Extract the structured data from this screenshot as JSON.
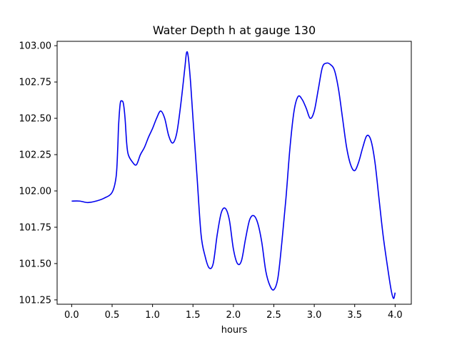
{
  "chart_data": {
    "type": "line",
    "title": "Water Depth h at gauge 130",
    "xlabel": "hours",
    "ylabel": "",
    "xlim": [
      -0.18,
      4.2
    ],
    "ylim": [
      101.22,
      103.03
    ],
    "xticks": [
      0.0,
      0.5,
      1.0,
      1.5,
      2.0,
      2.5,
      3.0,
      3.5,
      4.0
    ],
    "xtick_labels": [
      "0.0",
      "0.5",
      "1.0",
      "1.5",
      "2.0",
      "2.5",
      "3.0",
      "3.5",
      "4.0"
    ],
    "yticks": [
      101.25,
      101.5,
      101.75,
      102.0,
      102.25,
      102.5,
      102.75,
      103.0
    ],
    "ytick_labels": [
      "101.25",
      "101.50",
      "101.75",
      "102.00",
      "102.25",
      "102.50",
      "102.75",
      "103.00"
    ],
    "grid": false,
    "series": [
      {
        "color": "#0000ee",
        "x": [
          0.0,
          0.1,
          0.2,
          0.3,
          0.4,
          0.5,
          0.55,
          0.57,
          0.58,
          0.6,
          0.62,
          0.64,
          0.66,
          0.68,
          0.7,
          0.75,
          0.8,
          0.85,
          0.9,
          0.95,
          1.0,
          1.05,
          1.1,
          1.15,
          1.2,
          1.25,
          1.3,
          1.35,
          1.4,
          1.42,
          1.44,
          1.47,
          1.5,
          1.55,
          1.6,
          1.65,
          1.7,
          1.75,
          1.8,
          1.85,
          1.9,
          1.95,
          2.0,
          2.05,
          2.1,
          2.15,
          2.2,
          2.25,
          2.3,
          2.35,
          2.4,
          2.45,
          2.5,
          2.55,
          2.6,
          2.65,
          2.7,
          2.75,
          2.8,
          2.85,
          2.9,
          2.95,
          3.0,
          3.05,
          3.1,
          3.15,
          3.2,
          3.25,
          3.3,
          3.35,
          3.4,
          3.45,
          3.5,
          3.55,
          3.6,
          3.65,
          3.7,
          3.75,
          3.8,
          3.85,
          3.9,
          3.95,
          3.98,
          4.0
        ],
        "y": [
          101.93,
          101.93,
          101.92,
          101.93,
          101.95,
          101.99,
          102.1,
          102.3,
          102.45,
          102.6,
          102.62,
          102.6,
          102.5,
          102.33,
          102.25,
          102.2,
          102.18,
          102.25,
          102.3,
          102.37,
          102.43,
          102.5,
          102.55,
          102.5,
          102.38,
          102.33,
          102.4,
          102.6,
          102.85,
          102.95,
          102.93,
          102.75,
          102.5,
          102.1,
          101.7,
          101.55,
          101.47,
          101.5,
          101.7,
          101.85,
          101.88,
          101.8,
          101.6,
          101.5,
          101.52,
          101.67,
          101.8,
          101.83,
          101.78,
          101.65,
          101.45,
          101.35,
          101.32,
          101.4,
          101.65,
          101.95,
          102.3,
          102.55,
          102.65,
          102.63,
          102.57,
          102.5,
          102.55,
          102.7,
          102.85,
          102.88,
          102.87,
          102.83,
          102.7,
          102.5,
          102.3,
          102.18,
          102.14,
          102.2,
          102.3,
          102.38,
          102.35,
          102.2,
          101.95,
          101.7,
          101.5,
          101.32,
          101.26,
          101.3
        ]
      }
    ]
  }
}
